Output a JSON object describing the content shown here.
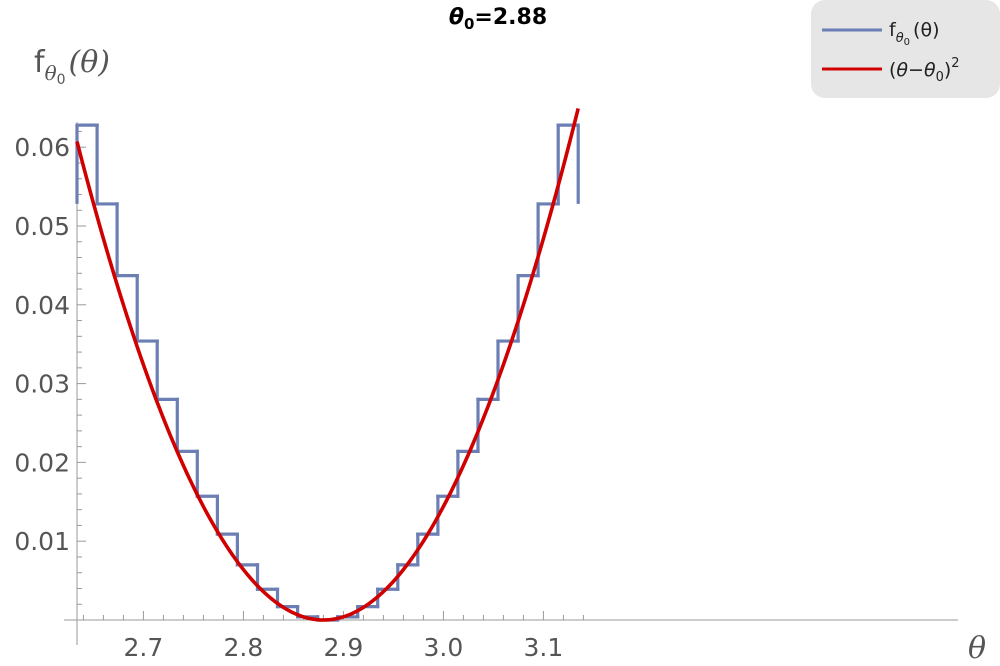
{
  "chart_data": {
    "type": "line",
    "title": {
      "symbol": "θ",
      "subscript": "0",
      "rest": "=2.88"
    },
    "theta0": 2.88,
    "xlabel": "θ",
    "ylabel": {
      "base": "f",
      "sub": "θ",
      "subsub": "0",
      "arg": "(θ)"
    },
    "xlim": [
      2.63,
      3.14
    ],
    "ylim": [
      0,
      0.063
    ],
    "xticks": [
      2.7,
      2.8,
      2.9,
      3.0,
      3.1
    ],
    "xtick_labels": [
      "2.7",
      "2.8",
      "2.9",
      "3.0",
      "3.1"
    ],
    "yticks": [
      0.01,
      0.02,
      0.03,
      0.04,
      0.05,
      0.06
    ],
    "ytick_labels": [
      "0.01",
      "0.02",
      "0.03",
      "0.04",
      "0.05",
      "0.06"
    ],
    "grid": false,
    "legend_position": "top-right",
    "series": [
      {
        "kind": "step",
        "color": "#6b7fb5",
        "legend_label": {
          "base": "f",
          "sub": "θ",
          "subsub": "0",
          "arg": "(θ)"
        },
        "edges": [
          2.6336,
          2.6537,
          2.6737,
          2.6938,
          2.7138,
          2.7339,
          2.7539,
          2.774,
          2.794,
          2.8141,
          2.8341,
          2.8542,
          2.8742,
          2.8942,
          2.9143,
          2.9343,
          2.9544,
          2.9744,
          2.9945,
          3.0145,
          3.0346,
          3.0546,
          3.0747,
          3.0947,
          3.1148,
          3.1348
        ],
        "values": [
          0.0628,
          0.0528,
          0.0437,
          0.0354,
          0.028,
          0.0214,
          0.0157,
          0.0109,
          0.007,
          0.0039,
          0.0017,
          0.0004,
          0.0,
          0.0004,
          0.0017,
          0.0039,
          0.007,
          0.0109,
          0.0157,
          0.0214,
          0.028,
          0.0354,
          0.0437,
          0.0528,
          0.0628
        ]
      },
      {
        "kind": "function",
        "color": "#d00000",
        "legend_label": {
          "lp": "(",
          "a": "θ",
          "op": "−",
          "b": "θ",
          "bsub": "0",
          "rp": ")",
          "sup": "2"
        },
        "x_range": [
          2.6336,
          3.1348
        ]
      }
    ]
  }
}
